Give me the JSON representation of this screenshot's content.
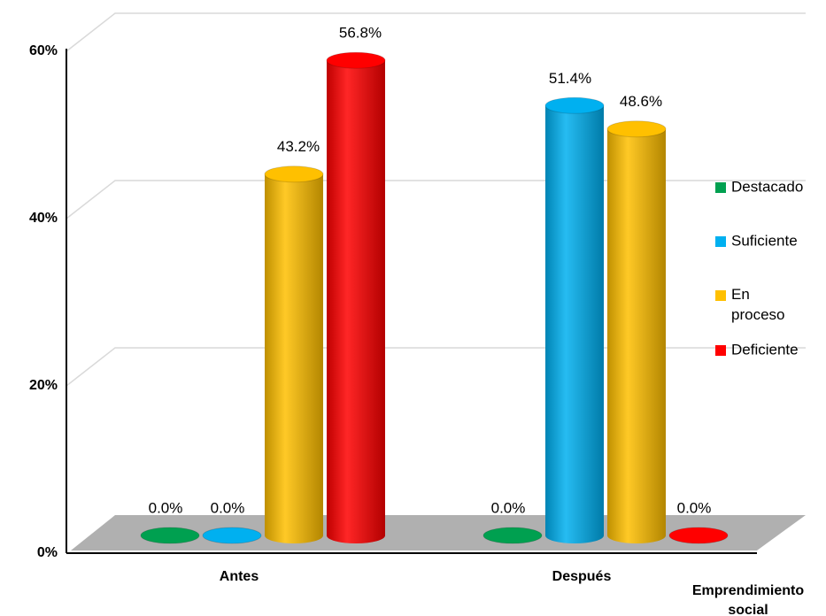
{
  "chart_data": {
    "type": "bar3d",
    "x_label": "Emprendimiento social",
    "categories": [
      "Antes",
      "Después"
    ],
    "series": [
      {
        "name": "Destacado",
        "color": "#00a050",
        "values": [
          0,
          0
        ],
        "value_labels": [
          "0.0%",
          "0.0%"
        ]
      },
      {
        "name": "Suficiente",
        "color": "#00b0f0",
        "values": [
          0,
          51.4
        ],
        "value_labels": [
          "0.0%",
          "51.4%"
        ]
      },
      {
        "name": "En proceso",
        "color": "#ffc000",
        "values": [
          43.2,
          48.6
        ],
        "value_labels": [
          "43.2%",
          "48.6%"
        ]
      },
      {
        "name": "Deficiente",
        "color": "#ff0000",
        "values": [
          56.8,
          0
        ],
        "value_labels": [
          "56.8%",
          "0.0%"
        ]
      }
    ],
    "ylim": [
      0,
      60
    ],
    "yticks": [
      {
        "value": 0,
        "label": "0%"
      },
      {
        "value": 20,
        "label": "20%"
      },
      {
        "value": 40,
        "label": "40%"
      },
      {
        "value": 60,
        "label": "60%"
      }
    ],
    "grid": true,
    "legend": "right"
  }
}
